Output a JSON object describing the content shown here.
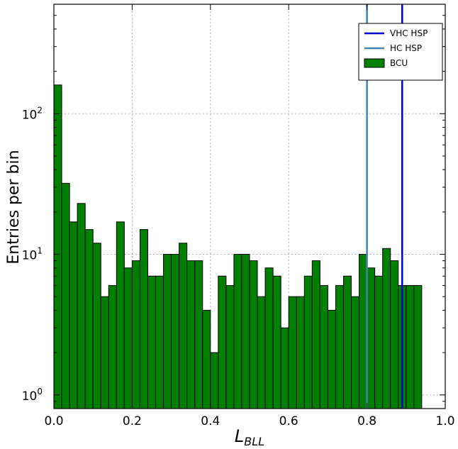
{
  "chart_data": {
    "type": "bar",
    "subtype": "histogram",
    "ylog": true,
    "xlim": [
      0.0,
      1.0
    ],
    "ylim": [
      0.8,
      600
    ],
    "grid": true,
    "legend_placement": "top-right",
    "xlabel": "L_BLL",
    "xlabel_main": "L",
    "xlabel_sub": "BLL",
    "ylabel": "Entries per bin",
    "x_ticks": [
      "0.0",
      "0.2",
      "0.4",
      "0.6",
      "0.8",
      "1.0"
    ],
    "x_tick_values": [
      0.0,
      0.2,
      0.4,
      0.6,
      0.8,
      1.0
    ],
    "y_ticks": [
      {
        "value": 1,
        "base": "10",
        "exp": "0"
      },
      {
        "value": 10,
        "base": "10",
        "exp": "1"
      },
      {
        "value": 100,
        "base": "10",
        "exp": "2"
      }
    ],
    "bin_width": 0.02,
    "bins": [
      {
        "x": 0.0,
        "y": 160
      },
      {
        "x": 0.02,
        "y": 32
      },
      {
        "x": 0.04,
        "y": 17
      },
      {
        "x": 0.06,
        "y": 23
      },
      {
        "x": 0.08,
        "y": 15
      },
      {
        "x": 0.1,
        "y": 12
      },
      {
        "x": 0.12,
        "y": 5
      },
      {
        "x": 0.14,
        "y": 6
      },
      {
        "x": 0.16,
        "y": 17
      },
      {
        "x": 0.18,
        "y": 8
      },
      {
        "x": 0.2,
        "y": 9
      },
      {
        "x": 0.22,
        "y": 15
      },
      {
        "x": 0.24,
        "y": 7
      },
      {
        "x": 0.26,
        "y": 7
      },
      {
        "x": 0.28,
        "y": 10
      },
      {
        "x": 0.3,
        "y": 10
      },
      {
        "x": 0.32,
        "y": 12
      },
      {
        "x": 0.34,
        "y": 9
      },
      {
        "x": 0.36,
        "y": 9
      },
      {
        "x": 0.38,
        "y": 4
      },
      {
        "x": 0.4,
        "y": 2
      },
      {
        "x": 0.42,
        "y": 7
      },
      {
        "x": 0.44,
        "y": 6
      },
      {
        "x": 0.46,
        "y": 10
      },
      {
        "x": 0.48,
        "y": 10
      },
      {
        "x": 0.5,
        "y": 9
      },
      {
        "x": 0.52,
        "y": 5
      },
      {
        "x": 0.54,
        "y": 8
      },
      {
        "x": 0.56,
        "y": 7
      },
      {
        "x": 0.58,
        "y": 3
      },
      {
        "x": 0.6,
        "y": 5
      },
      {
        "x": 0.62,
        "y": 5
      },
      {
        "x": 0.64,
        "y": 7
      },
      {
        "x": 0.66,
        "y": 9
      },
      {
        "x": 0.68,
        "y": 6
      },
      {
        "x": 0.7,
        "y": 4
      },
      {
        "x": 0.72,
        "y": 6
      },
      {
        "x": 0.74,
        "y": 7
      },
      {
        "x": 0.76,
        "y": 5
      },
      {
        "x": 0.78,
        "y": 10
      },
      {
        "x": 0.8,
        "y": 8
      },
      {
        "x": 0.82,
        "y": 7
      },
      {
        "x": 0.84,
        "y": 11
      },
      {
        "x": 0.86,
        "y": 9
      },
      {
        "x": 0.88,
        "y": 6
      },
      {
        "x": 0.9,
        "y": 6
      },
      {
        "x": 0.92,
        "y": 6
      }
    ],
    "vlines": [
      {
        "name": "VHC HSP",
        "x": 0.89,
        "color": "#0000cc"
      },
      {
        "name": "HC HSP",
        "x": 0.8,
        "color": "#4682b4"
      }
    ],
    "legend": [
      {
        "label": "VHC HSP",
        "kind": "line",
        "color": "#0000cc"
      },
      {
        "label": "HC HSP",
        "kind": "line",
        "color": "#4682b4"
      },
      {
        "label": "BCU",
        "kind": "patch",
        "color": "#008000"
      }
    ],
    "colors": {
      "bar_fill": "#008000",
      "bar_edge": "#000000",
      "grid": "#b0b0b0"
    }
  }
}
